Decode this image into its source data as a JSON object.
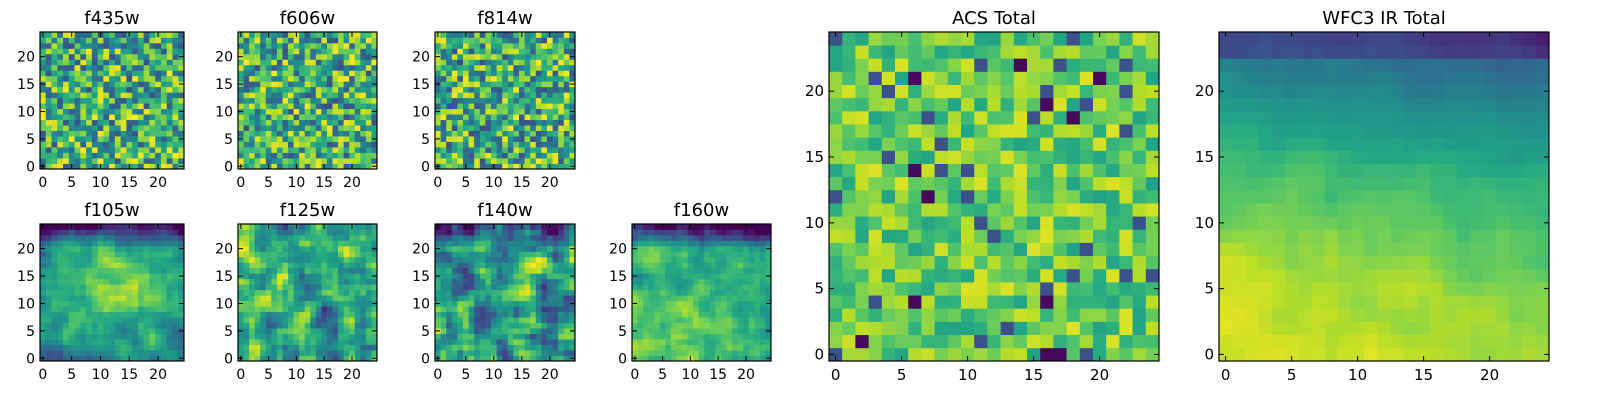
{
  "figure": {
    "description_panels": 9
  },
  "chart_data": [
    {
      "type": "heatmap",
      "title": "f435w",
      "grid_size": 25,
      "xticks": [
        0,
        5,
        10,
        15,
        20
      ],
      "yticks": [
        0,
        5,
        10,
        15,
        20
      ],
      "xlim": [
        0,
        25
      ],
      "ylim": [
        0,
        25
      ],
      "pattern": "uniform-noise",
      "colormap": "viridis"
    },
    {
      "type": "heatmap",
      "title": "f606w",
      "grid_size": 25,
      "xticks": [
        0,
        5,
        10,
        15,
        20
      ],
      "yticks": [
        0,
        5,
        10,
        15,
        20
      ],
      "xlim": [
        0,
        25
      ],
      "ylim": [
        0,
        25
      ],
      "pattern": "uniform-noise",
      "colormap": "viridis"
    },
    {
      "type": "heatmap",
      "title": "f814w",
      "grid_size": 25,
      "xticks": [
        0,
        5,
        10,
        15,
        20
      ],
      "yticks": [
        0,
        5,
        10,
        15,
        20
      ],
      "xlim": [
        0,
        25
      ],
      "ylim": [
        0,
        25
      ],
      "pattern": "uniform-noise",
      "colormap": "viridis"
    },
    {
      "type": "heatmap",
      "title": "f105w",
      "grid_size": 25,
      "xticks": [
        0,
        5,
        10,
        15,
        20
      ],
      "yticks": [
        0,
        5,
        10,
        15,
        20
      ],
      "xlim": [
        0,
        25
      ],
      "ylim": [
        0,
        25
      ],
      "pattern": "smooth-bright-center-dark-top",
      "colormap": "viridis"
    },
    {
      "type": "heatmap",
      "title": "f125w",
      "grid_size": 25,
      "xticks": [
        0,
        5,
        10,
        15,
        20
      ],
      "yticks": [
        0,
        5,
        10,
        15,
        20
      ],
      "xlim": [
        0,
        25
      ],
      "ylim": [
        0,
        25
      ],
      "pattern": "smooth-noise",
      "colormap": "viridis"
    },
    {
      "type": "heatmap",
      "title": "f140w",
      "grid_size": 25,
      "xticks": [
        0,
        5,
        10,
        15,
        20
      ],
      "yticks": [
        0,
        5,
        10,
        15,
        20
      ],
      "xlim": [
        0,
        25
      ],
      "ylim": [
        0,
        25
      ],
      "pattern": "smooth-noise-dark-top",
      "colormap": "viridis"
    },
    {
      "type": "heatmap",
      "title": "f160w",
      "grid_size": 25,
      "xticks": [
        0,
        5,
        10,
        15,
        20
      ],
      "yticks": [
        0,
        5,
        10,
        15,
        20
      ],
      "xlim": [
        0,
        25
      ],
      "ylim": [
        0,
        25
      ],
      "pattern": "smooth-bright-bottom-left-dark-top",
      "colormap": "viridis"
    },
    {
      "type": "heatmap",
      "title": "ACS Total",
      "grid_size": 25,
      "xticks": [
        0,
        5,
        10,
        15,
        20
      ],
      "yticks": [
        0,
        5,
        10,
        15,
        20
      ],
      "xlim": [
        0,
        25
      ],
      "ylim": [
        0,
        25
      ],
      "pattern": "mostly-bright-noise",
      "colormap": "viridis"
    },
    {
      "type": "heatmap",
      "title": "WFC3 IR Total",
      "grid_size": 25,
      "xticks": [
        0,
        5,
        10,
        15,
        20
      ],
      "yticks": [
        0,
        5,
        10,
        15,
        20
      ],
      "xlim": [
        0,
        25
      ],
      "ylim": [
        0,
        25
      ],
      "pattern": "gradient-bright-bottom-dark-top",
      "colormap": "viridis"
    }
  ]
}
